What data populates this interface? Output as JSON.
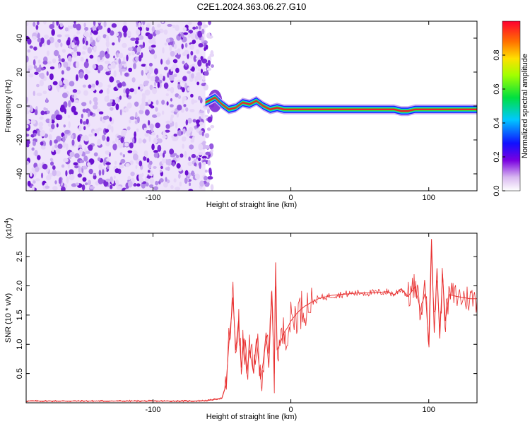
{
  "title": "C2E1.2024.363.06.27.G10",
  "chart_data": [
    {
      "type": "heatmap",
      "xlabel": "Height of straight line (km)",
      "ylabel": "Frequency (Hz)",
      "xlim": [
        -192,
        135
      ],
      "ylim": [
        -50,
        50
      ],
      "x_ticks": [
        -100,
        0,
        100
      ],
      "x_tick_labels": [
        "-100",
        "0",
        "100"
      ],
      "y_ticks": [
        -40,
        -20,
        0,
        20,
        40
      ],
      "y_tick_labels": [
        "-40",
        "-20",
        "0",
        "20",
        "40"
      ],
      "noise_region_x": [
        -192,
        -62
      ],
      "signal_track": {
        "x": [
          -62,
          -55,
          -50,
          -45,
          -40,
          -35,
          -30,
          -25,
          -20,
          -15,
          -10,
          -5,
          0,
          10,
          20,
          30,
          40,
          50,
          60,
          65,
          70,
          75,
          80,
          85,
          90,
          95,
          100,
          105,
          110,
          120,
          135
        ],
        "freq": [
          2,
          5,
          1,
          -2,
          -1,
          2,
          1,
          3,
          0,
          -2,
          -1,
          -2,
          -2,
          -2,
          -2,
          -2,
          -2,
          -2,
          -2,
          -2,
          -2,
          -2,
          -3,
          -3,
          -2,
          -2,
          -2,
          -2,
          -2,
          -2,
          -2
        ]
      },
      "grid": false,
      "colorbar": {
        "label": "Normalized spectral amplitude",
        "range": [
          0,
          1
        ],
        "ticks": [
          0.0,
          0.2,
          0.4,
          0.6,
          0.8
        ],
        "tick_labels": [
          "0.0",
          "0.2",
          "0.4",
          "0.6",
          "0.8"
        ]
      }
    },
    {
      "type": "line",
      "xlabel": "Height of straight line (km)",
      "ylabel": "SNR (10 * v/v)",
      "scale_label": "(x10",
      "scale_exp": "4",
      "xlim": [
        -192,
        135
      ],
      "ylim": [
        0,
        2.9
      ],
      "x_ticks": [
        -100,
        0,
        100
      ],
      "x_tick_labels": [
        "-100",
        "0",
        "100"
      ],
      "y_ticks": [
        0.5,
        1.0,
        1.5,
        2.0,
        2.5
      ],
      "y_tick_labels": [
        "0.5",
        "1.0",
        "1.5",
        "2.0",
        "2.5"
      ],
      "grid": false,
      "series": [
        {
          "color": "#e83030",
          "x": [
            -192,
            -150,
            -100,
            -70,
            -60,
            -50,
            -47,
            -45,
            -43,
            -42,
            -40,
            -38,
            -36,
            -34,
            -32,
            -30,
            -27,
            -25,
            -22,
            -20,
            -18,
            -16,
            -14,
            -12,
            -11,
            -10,
            -8,
            -5,
            -2,
            0,
            5,
            10,
            15,
            20,
            30,
            40,
            50,
            60,
            70,
            75,
            80,
            85,
            90,
            95,
            97,
            100,
            102,
            104,
            106,
            108,
            110,
            112,
            115,
            120,
            125,
            130,
            135
          ],
          "y": [
            0.03,
            0.03,
            0.03,
            0.03,
            0.04,
            0.08,
            0.3,
            1.0,
            1.5,
            1.8,
            0.9,
            1.4,
            0.6,
            1.1,
            0.5,
            0.9,
            0.5,
            1.1,
            0.4,
            0.7,
            1.2,
            0.6,
            1.9,
            0.5,
            2.4,
            0.9,
            1.0,
            1.2,
            1.3,
            1.4,
            1.55,
            1.65,
            1.72,
            1.78,
            1.84,
            1.86,
            1.88,
            1.88,
            1.9,
            1.85,
            1.95,
            1.82,
            1.98,
            1.5,
            2.1,
            1.0,
            2.8,
            1.2,
            2.3,
            1.1,
            2.2,
            1.4,
            1.85,
            1.82,
            1.8,
            1.78,
            1.78
          ]
        }
      ]
    }
  ]
}
